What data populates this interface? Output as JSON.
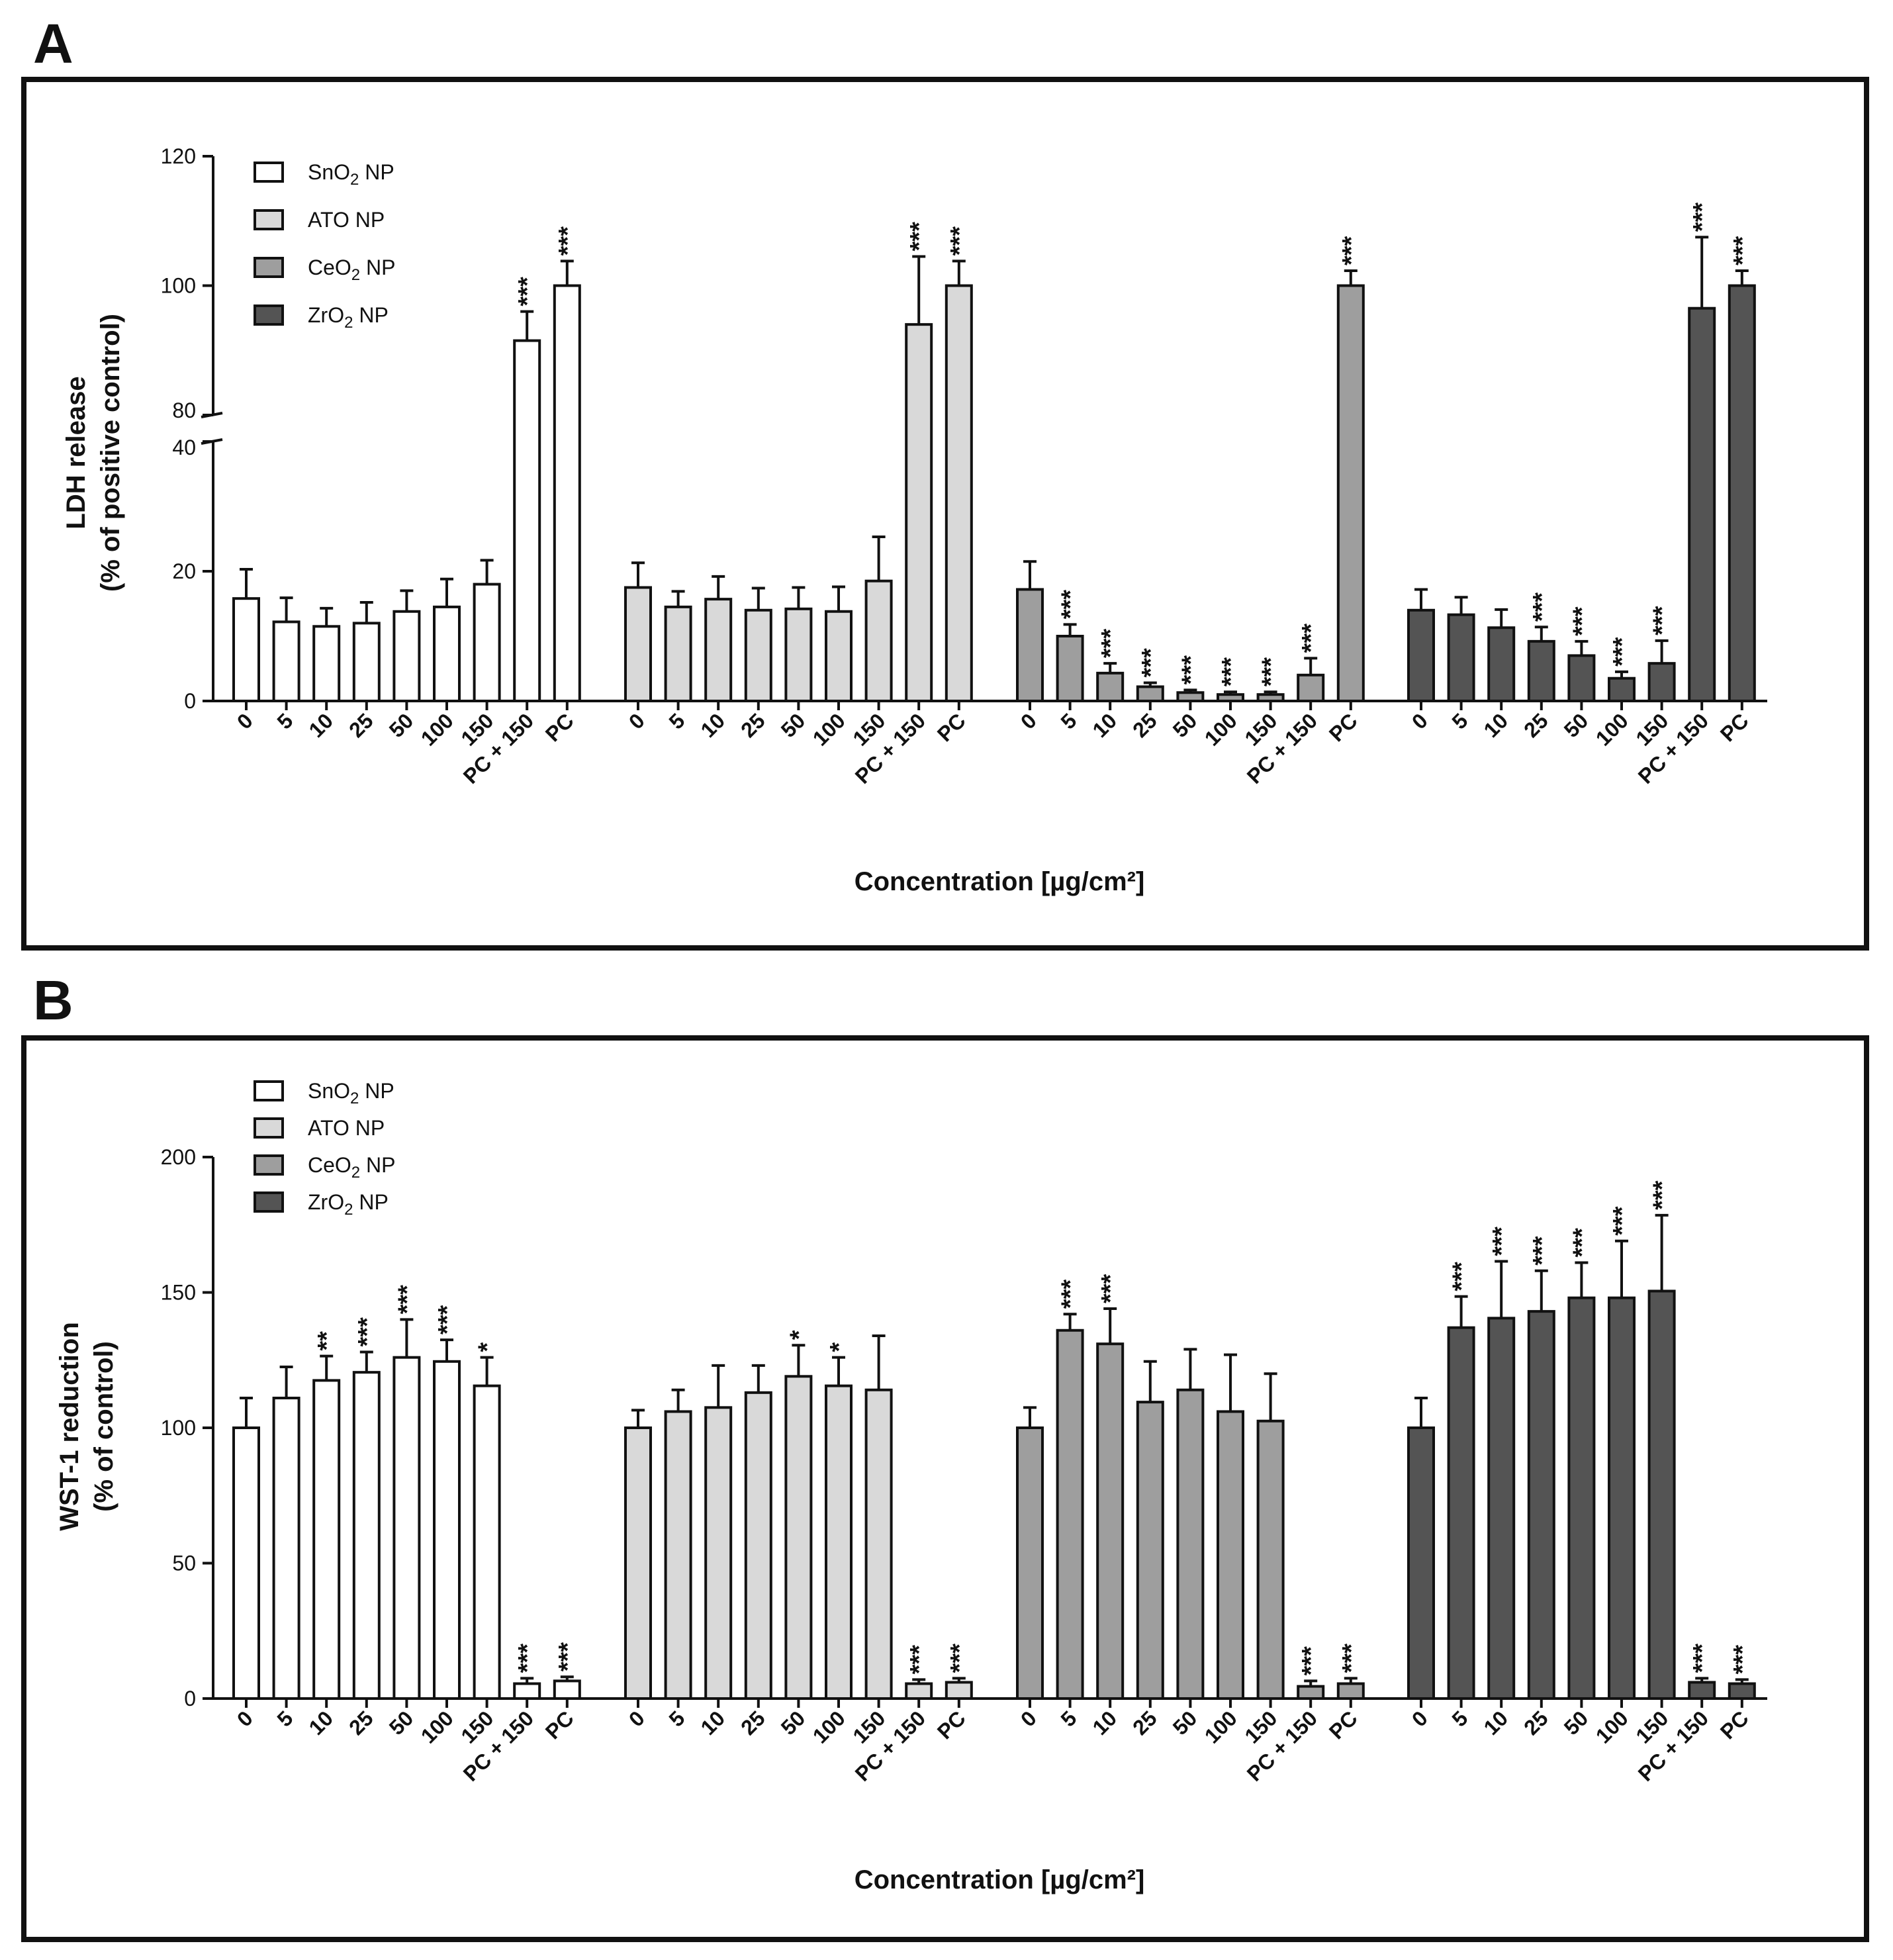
{
  "chart_data": [
    {
      "type": "bar",
      "panel": "A",
      "ylabel_line1": "LDH release",
      "ylabel_line2": "(% of positive control)",
      "xlabel": "Concentration [µg/cm²]",
      "ylim": [
        0,
        120
      ],
      "axis_break": [
        40,
        80
      ],
      "yticks": [
        0,
        20,
        40,
        80,
        100,
        120
      ],
      "grid": false,
      "legend_position": "top-left",
      "categories": [
        "0",
        "5",
        "10",
        "25",
        "50",
        "100",
        "150",
        "PC + 150",
        "PC"
      ],
      "series": [
        {
          "name": "SnO₂ NP",
          "color": "#ffffff",
          "values": [
            15.8,
            12.2,
            11.5,
            12.0,
            13.8,
            14.5,
            18.0,
            91.5,
            100
          ],
          "errors": [
            4.5,
            3.7,
            2.8,
            3.2,
            3.2,
            4.3,
            3.7,
            4.5,
            3.8
          ],
          "sig": [
            "",
            "",
            "",
            "",
            "",
            "",
            "",
            "***",
            "***"
          ]
        },
        {
          "name": "ATO NP",
          "color": "#d9d9d9",
          "values": [
            17.5,
            14.5,
            15.7,
            14.0,
            14.2,
            13.8,
            18.5,
            94.0,
            100
          ],
          "errors": [
            3.8,
            2.4,
            3.5,
            3.4,
            3.3,
            3.8,
            6.8,
            10.5,
            3.8
          ],
          "sig": [
            "",
            "",
            "",
            "",
            "",
            "",
            "",
            "***",
            "***"
          ]
        },
        {
          "name": "CeO₂ NP",
          "color": "#9e9e9e",
          "values": [
            17.2,
            10.0,
            4.3,
            2.2,
            1.3,
            1.0,
            1.0,
            4.0,
            100
          ],
          "errors": [
            4.3,
            1.8,
            1.5,
            0.6,
            0.4,
            0.4,
            0.4,
            2.6,
            2.3
          ],
          "sig": [
            "",
            "***",
            "***",
            "***",
            "***",
            "***",
            "***",
            "***",
            "***"
          ]
        },
        {
          "name": "ZrO₂ NP",
          "color": "#545454",
          "values": [
            14.0,
            13.3,
            11.3,
            9.2,
            7.0,
            3.5,
            5.8,
            96.5,
            100
          ],
          "errors": [
            3.2,
            2.7,
            2.8,
            2.2,
            2.2,
            1.0,
            3.5,
            11.0,
            2.3
          ],
          "sig": [
            "",
            "",
            "",
            "***",
            "***",
            "***",
            "***",
            "***",
            "***"
          ]
        }
      ]
    },
    {
      "type": "bar",
      "panel": "B",
      "ylabel_line1": "WST-1 reduction",
      "ylabel_line2": "(% of control)",
      "xlabel": "Concentration [µg/cm²]",
      "ylim": [
        0,
        200
      ],
      "yticks": [
        0,
        50,
        100,
        150,
        200
      ],
      "grid": false,
      "legend_position": "top-left",
      "categories": [
        "0",
        "5",
        "10",
        "25",
        "50",
        "100",
        "150",
        "PC + 150",
        "PC"
      ],
      "series": [
        {
          "name": "SnO₂ NP",
          "color": "#ffffff",
          "values": [
            100,
            111,
            117.5,
            120.5,
            126,
            124.5,
            115.5,
            5.5,
            6.5
          ],
          "errors": [
            11,
            11.5,
            9,
            7.5,
            14,
            8,
            10.5,
            2,
            1.5
          ],
          "sig": [
            "",
            "",
            "**",
            "***",
            "***",
            "***",
            "*",
            "***",
            "***"
          ]
        },
        {
          "name": "ATO NP",
          "color": "#d9d9d9",
          "values": [
            100,
            106,
            107.5,
            113,
            119,
            115.5,
            114,
            5.5,
            6.0
          ],
          "errors": [
            6.5,
            8,
            15.5,
            10,
            11.5,
            10.5,
            20,
            1.5,
            1.5
          ],
          "sig": [
            "",
            "",
            "",
            "",
            "*",
            "*",
            "",
            "***",
            "***"
          ]
        },
        {
          "name": "CeO₂ NP",
          "color": "#9e9e9e",
          "values": [
            100,
            136,
            131,
            109.5,
            114,
            106,
            102.5,
            4.5,
            5.5
          ],
          "errors": [
            7.5,
            6,
            13,
            15,
            15,
            21,
            17.5,
            2,
            2
          ],
          "sig": [
            "",
            "***",
            "***",
            "",
            "",
            "",
            "",
            "***",
            "***"
          ]
        },
        {
          "name": "ZrO₂ NP",
          "color": "#545454",
          "values": [
            100,
            137,
            140.5,
            143,
            148,
            148,
            150.5,
            6.0,
            5.5
          ],
          "errors": [
            11,
            11.5,
            21,
            15,
            13,
            21,
            28,
            1.5,
            1.5
          ],
          "sig": [
            "",
            "***",
            "***",
            "***",
            "***",
            "***",
            "***",
            "***",
            "***"
          ]
        }
      ]
    }
  ]
}
